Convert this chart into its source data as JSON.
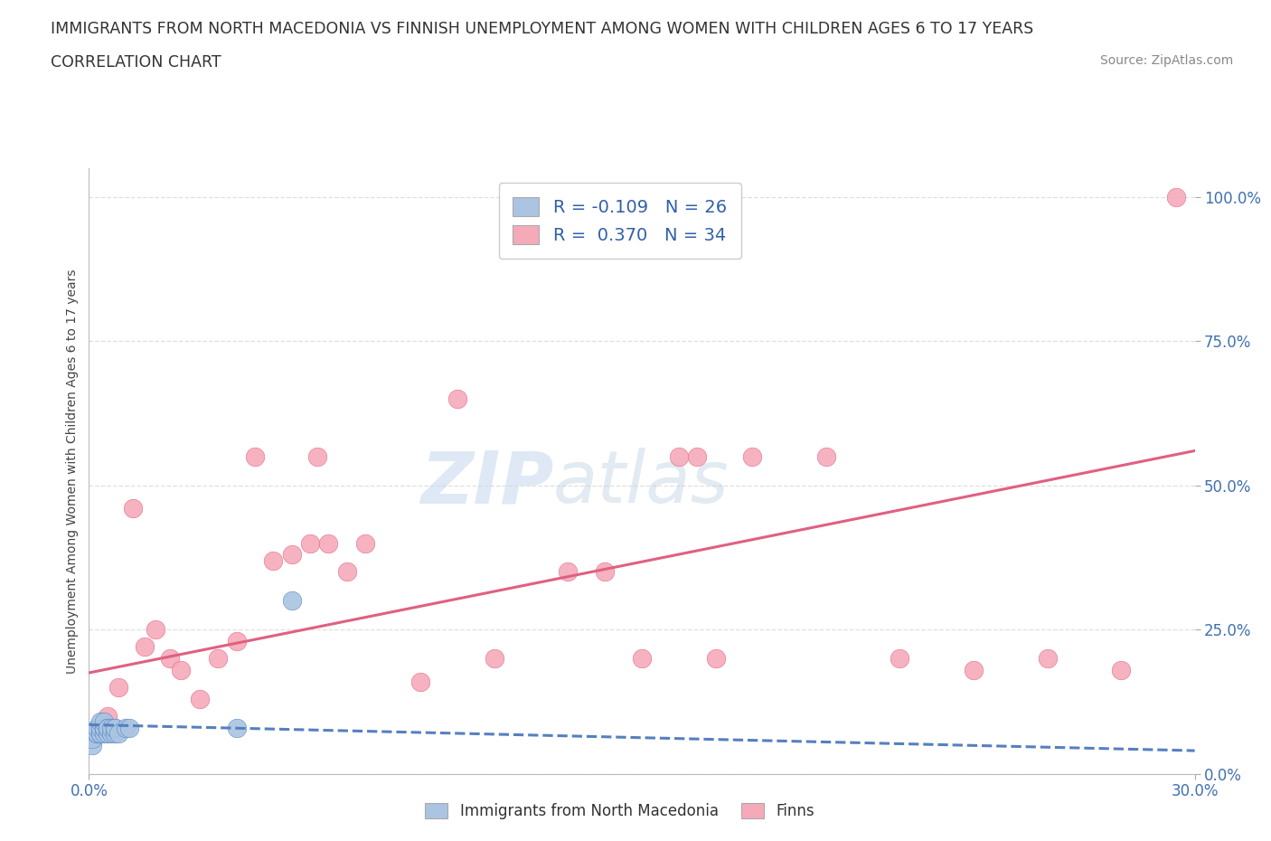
{
  "title": "IMMIGRANTS FROM NORTH MACEDONIA VS FINNISH UNEMPLOYMENT AMONG WOMEN WITH CHILDREN AGES 6 TO 17 YEARS",
  "subtitle": "CORRELATION CHART",
  "source": "Source: ZipAtlas.com",
  "xlim": [
    0.0,
    0.3
  ],
  "ylim": [
    0.0,
    1.05
  ],
  "watermark_zip": "ZIP",
  "watermark_atlas": "atlas",
  "color_blue": "#aac4e2",
  "color_pink": "#f5aaba",
  "line_blue": "#5580c0",
  "line_pink": "#e06080",
  "bg_color": "#ffffff",
  "grid_color": "#d8d8d8",
  "immigrants_x": [
    0.001,
    0.001,
    0.002,
    0.002,
    0.002,
    0.003,
    0.003,
    0.003,
    0.003,
    0.004,
    0.004,
    0.004,
    0.004,
    0.005,
    0.005,
    0.005,
    0.006,
    0.006,
    0.007,
    0.007,
    0.007,
    0.008,
    0.01,
    0.011,
    0.04,
    0.055
  ],
  "immigrants_y": [
    0.05,
    0.06,
    0.07,
    0.07,
    0.08,
    0.07,
    0.07,
    0.08,
    0.09,
    0.07,
    0.08,
    0.08,
    0.09,
    0.07,
    0.08,
    0.08,
    0.07,
    0.08,
    0.07,
    0.08,
    0.08,
    0.07,
    0.08,
    0.08,
    0.08,
    0.3
  ],
  "finns_x": [
    0.005,
    0.008,
    0.012,
    0.015,
    0.018,
    0.022,
    0.025,
    0.03,
    0.035,
    0.04,
    0.045,
    0.05,
    0.055,
    0.06,
    0.062,
    0.065,
    0.07,
    0.075,
    0.09,
    0.1,
    0.11,
    0.13,
    0.14,
    0.15,
    0.16,
    0.165,
    0.17,
    0.18,
    0.2,
    0.22,
    0.24,
    0.26,
    0.28,
    0.295
  ],
  "finns_y": [
    0.1,
    0.15,
    0.46,
    0.22,
    0.25,
    0.2,
    0.18,
    0.13,
    0.2,
    0.23,
    0.55,
    0.37,
    0.38,
    0.4,
    0.55,
    0.4,
    0.35,
    0.4,
    0.16,
    0.65,
    0.2,
    0.35,
    0.35,
    0.2,
    0.55,
    0.55,
    0.2,
    0.55,
    0.55,
    0.2,
    0.18,
    0.2,
    0.18,
    1.0
  ],
  "trendline_pink_x0": 0.0,
  "trendline_pink_y0": 0.175,
  "trendline_pink_x1": 0.3,
  "trendline_pink_y1": 0.56,
  "trendline_blue_x0": 0.0,
  "trendline_blue_y0": 0.085,
  "trendline_blue_x1": 0.3,
  "trendline_blue_y1": 0.04
}
